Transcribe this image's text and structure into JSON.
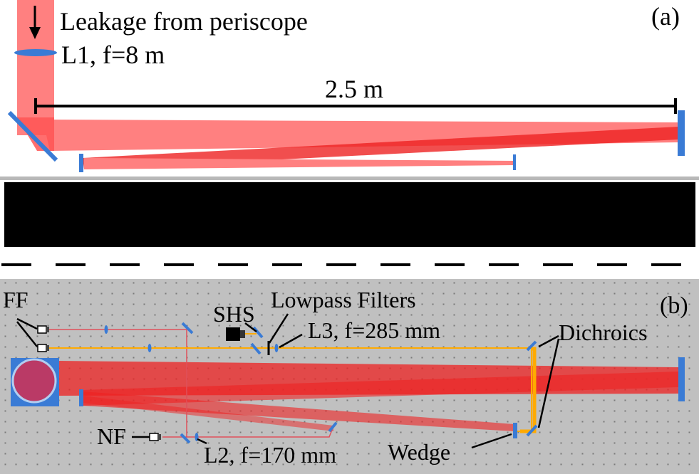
{
  "panel_a": {
    "label": "(a)",
    "leakage_label": "Leakage from periscope",
    "lens_label": "L1, f=8 m",
    "distance_label": "2.5 m"
  },
  "panel_b": {
    "label": "(b)",
    "ff_label": "FF",
    "shs_label": "SHS",
    "lowpass_label": "Lowpass Filters",
    "l3_label": "L3, f=285 mm",
    "dichroics_label": "Dichroics",
    "nf_label": "NF",
    "l2_label": "L2, f=170 mm",
    "wedge_label": "Wedge"
  },
  "colors": {
    "beam_light": "#ff8080",
    "beam_dark": "#ee2222",
    "optic_blue": "#3a7bd5",
    "table_gray": "#c0c0c0",
    "hole_dot": "#7a7a7a",
    "orange_beam": "#ffaa00",
    "thin_red": "#e0505a",
    "wall_black": "#000000"
  }
}
